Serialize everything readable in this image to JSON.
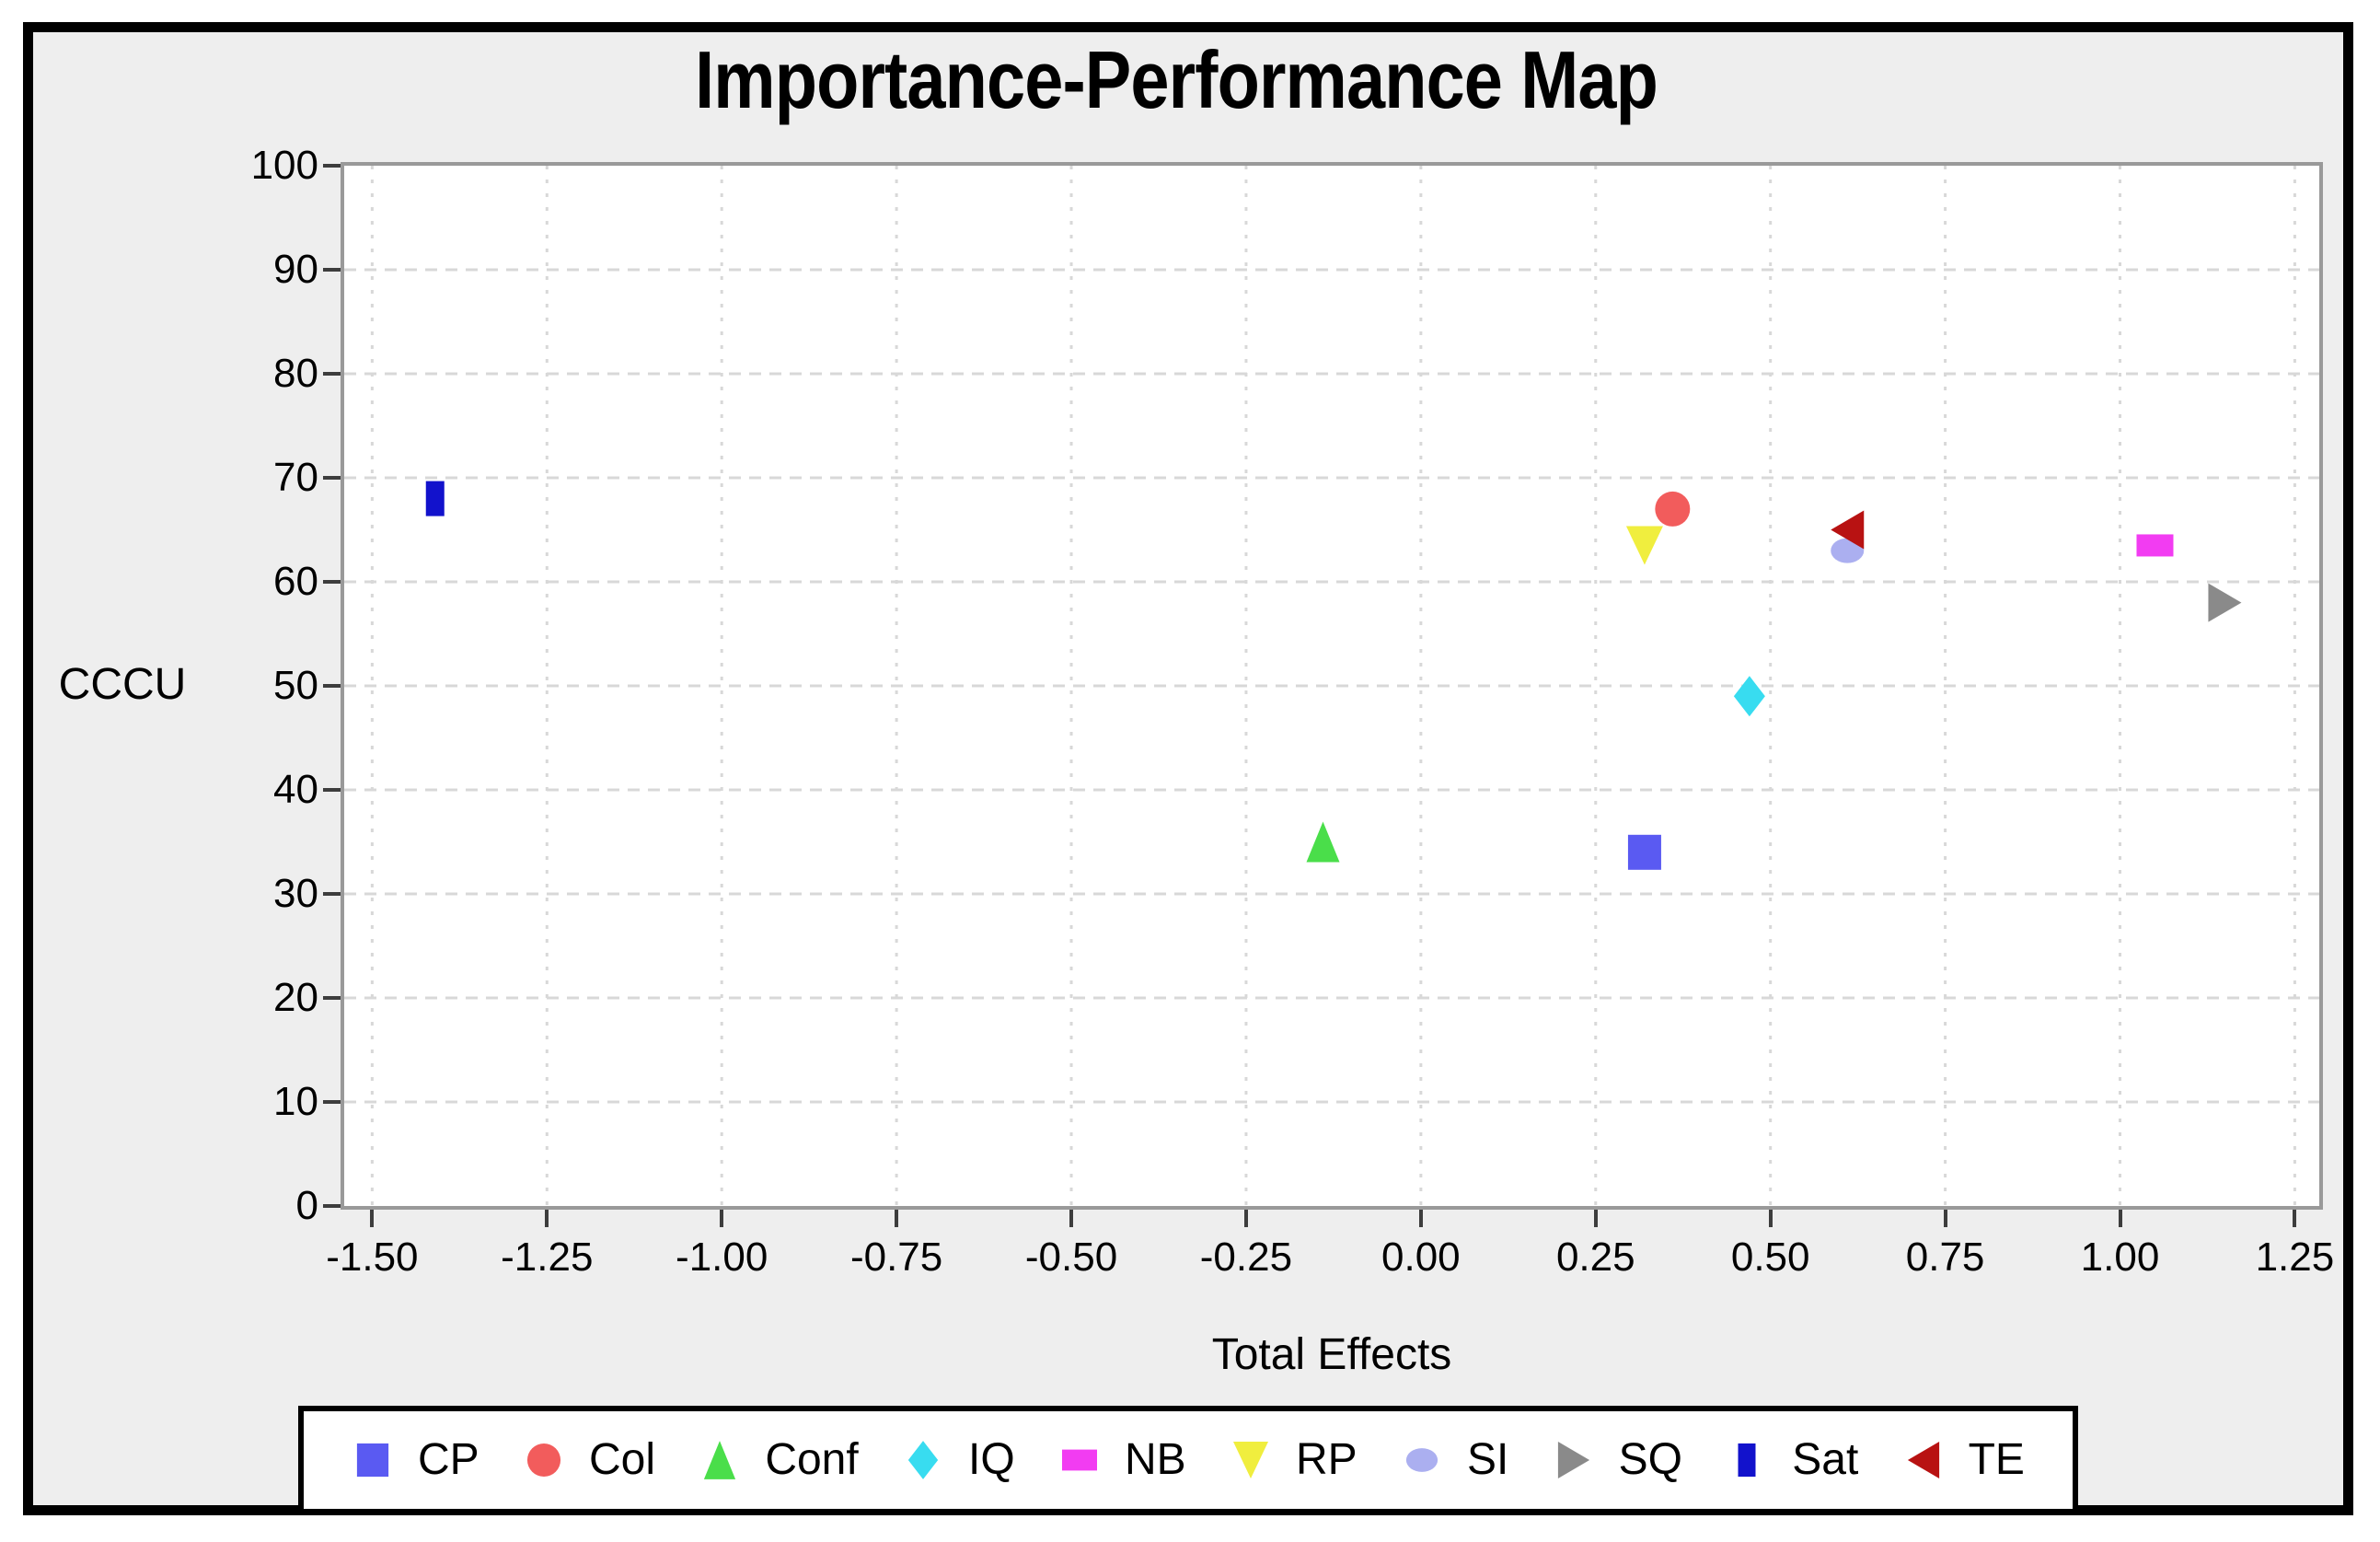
{
  "window": {
    "outer_background": "#ffffff",
    "frame_background": "#eeeeee",
    "frame_border_color": "#000000"
  },
  "chart_data": {
    "type": "scatter",
    "title": "Importance-Performance Map",
    "xlabel": "Total Effects",
    "ylabel": "CCCU",
    "xlim": [
      -1.54,
      1.285
    ],
    "ylim": [
      0,
      100
    ],
    "grid": true,
    "legend_position": "bottom",
    "x_ticks": {
      "values": [
        -1.5,
        -1.25,
        -1.0,
        -0.75,
        -0.5,
        -0.25,
        0.0,
        0.25,
        0.5,
        0.75,
        1.0,
        1.25
      ],
      "labels": [
        "-1.50",
        "-1.25",
        "-1.00",
        "-0.75",
        "-0.50",
        "-0.25",
        "0.00",
        "0.25",
        "0.50",
        "0.75",
        "1.00",
        "1.25"
      ]
    },
    "y_ticks": {
      "values": [
        0,
        10,
        20,
        30,
        40,
        50,
        60,
        70,
        80,
        90,
        100
      ],
      "labels": [
        "0",
        "10",
        "20",
        "30",
        "40",
        "50",
        "60",
        "70",
        "80",
        "90",
        "100"
      ]
    },
    "series": [
      {
        "name": "CP",
        "marker": "square",
        "color": "#5a5af2",
        "x": 0.32,
        "y": 34
      },
      {
        "name": "Col",
        "marker": "circle",
        "color": "#f25c5c",
        "x": 0.36,
        "y": 67
      },
      {
        "name": "Conf",
        "marker": "triangle-up",
        "color": "#4ade4a",
        "x": -0.14,
        "y": 35
      },
      {
        "name": "IQ",
        "marker": "diamond",
        "color": "#38dcf0",
        "x": 0.47,
        "y": 49
      },
      {
        "name": "NB",
        "marker": "rect-wide",
        "color": "#f23cf2",
        "x": 1.05,
        "y": 63.5
      },
      {
        "name": "RP",
        "marker": "triangle-down",
        "color": "#f0ee3e",
        "x": 0.32,
        "y": 63.5
      },
      {
        "name": "SI",
        "marker": "ellipse",
        "color": "#abaff0",
        "x": 0.61,
        "y": 63
      },
      {
        "name": "SQ",
        "marker": "triangle-right",
        "color": "#8a8a8a",
        "x": 1.15,
        "y": 58
      },
      {
        "name": "Sat",
        "marker": "rect-tall",
        "color": "#1212cc",
        "x": -1.41,
        "y": 68
      },
      {
        "name": "TE",
        "marker": "triangle-left",
        "color": "#b81212",
        "x": 0.61,
        "y": 65
      }
    ],
    "colors": {
      "plot_background": "#ffffff",
      "axis_frame": "#999999",
      "gridline": "#d8d8d8",
      "tick_mark": "#3d3d3d",
      "text": "#000000"
    }
  }
}
